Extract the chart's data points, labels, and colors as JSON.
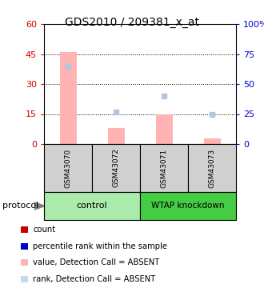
{
  "title": "GDS2010 / 209381_x_at",
  "samples": [
    "GSM43070",
    "GSM43072",
    "GSM43071",
    "GSM43073"
  ],
  "bar_values": [
    46,
    8,
    15,
    3
  ],
  "rank_values": [
    65,
    27,
    40,
    25
  ],
  "bar_color": "#FFB3B3",
  "rank_color": "#B3C6E0",
  "left_ylim": [
    0,
    60
  ],
  "right_ylim": [
    0,
    100
  ],
  "left_yticks": [
    0,
    15,
    30,
    45,
    60
  ],
  "right_yticks": [
    0,
    25,
    50,
    75,
    100
  ],
  "right_yticklabels": [
    "0",
    "25",
    "50",
    "75",
    "100%"
  ],
  "left_tick_color": "#CC0000",
  "right_tick_color": "#0000CC",
  "control_color": "#AAEAAA",
  "knockdown_color": "#44CC44",
  "protocol_label": "protocol",
  "legend_items": [
    {
      "color": "#CC0000",
      "label": "count"
    },
    {
      "color": "#0000CC",
      "label": "percentile rank within the sample"
    },
    {
      "color": "#FFB3B3",
      "label": "value, Detection Call = ABSENT"
    },
    {
      "color": "#C8D8F0",
      "label": "rank, Detection Call = ABSENT"
    }
  ],
  "grid_lines": [
    15,
    30,
    45
  ],
  "bar_width": 0.35
}
